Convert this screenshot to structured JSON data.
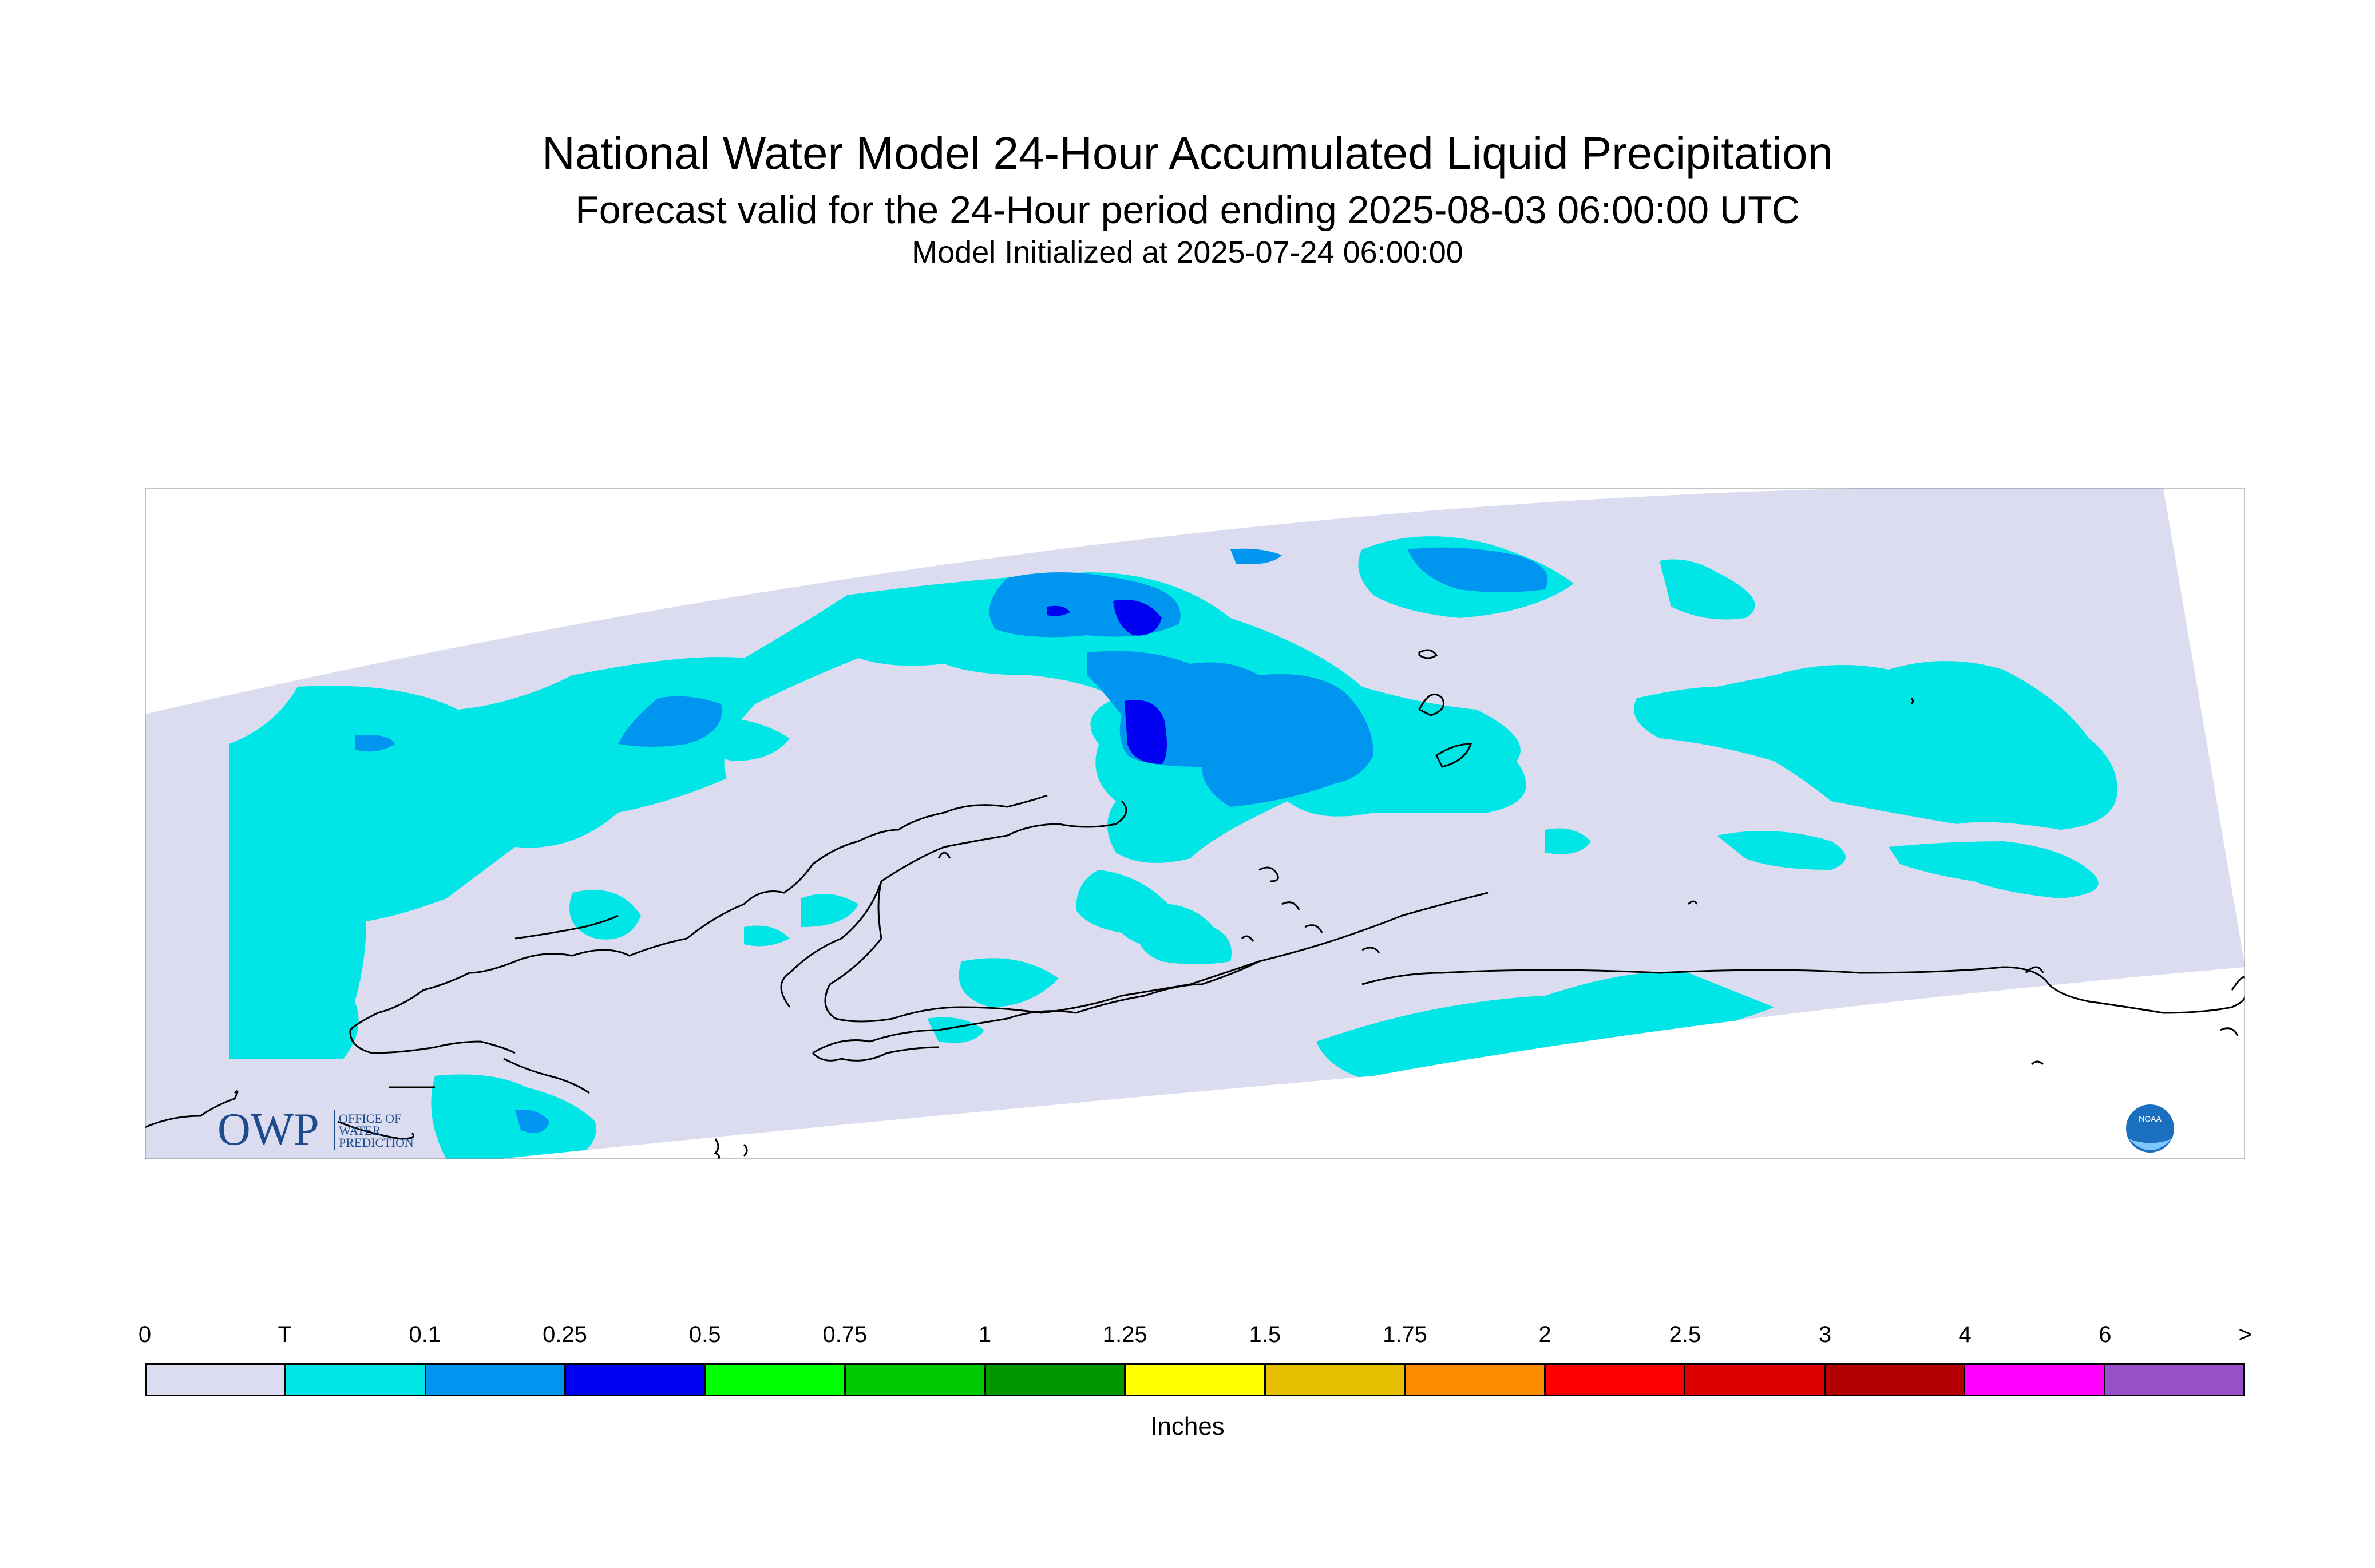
{
  "title": "National Water Model 24-Hour Accumulated Liquid Precipitation",
  "subtitle": "Forecast valid for the 24-Hour period ending 2025-08-03 06:00:00 UTC",
  "initialized": "Model Initialized at 2025-07-24 06:00:00",
  "logo_left": {
    "mark": "OWP",
    "text_lines": [
      "OFFICE OF",
      "WATER",
      "PREDICTION"
    ]
  },
  "logo_right": {
    "text": "NOAA"
  },
  "legend": {
    "units": "Inches",
    "labels": [
      "0",
      "T",
      "0.1",
      "0.25",
      "0.5",
      "0.75",
      "1",
      "1.25",
      "1.5",
      "1.75",
      "2",
      "2.5",
      "3",
      "4",
      "6",
      ">"
    ],
    "colors": [
      "#dcdcf0",
      "#00e6e6",
      "#0096f0",
      "#0000f0",
      "#00ff00",
      "#00c800",
      "#009600",
      "#ffff00",
      "#e6be00",
      "#ff8c00",
      "#ff0000",
      "#dc0000",
      "#b40000",
      "#ff00ff",
      "#9650c8"
    ]
  },
  "map_colors": {
    "zero": "#dcdcf0",
    "trace": "#00e6e6",
    "light": "#0096f0",
    "moderate": "#0000f0",
    "coast": "#000000",
    "frame": "#888888"
  }
}
